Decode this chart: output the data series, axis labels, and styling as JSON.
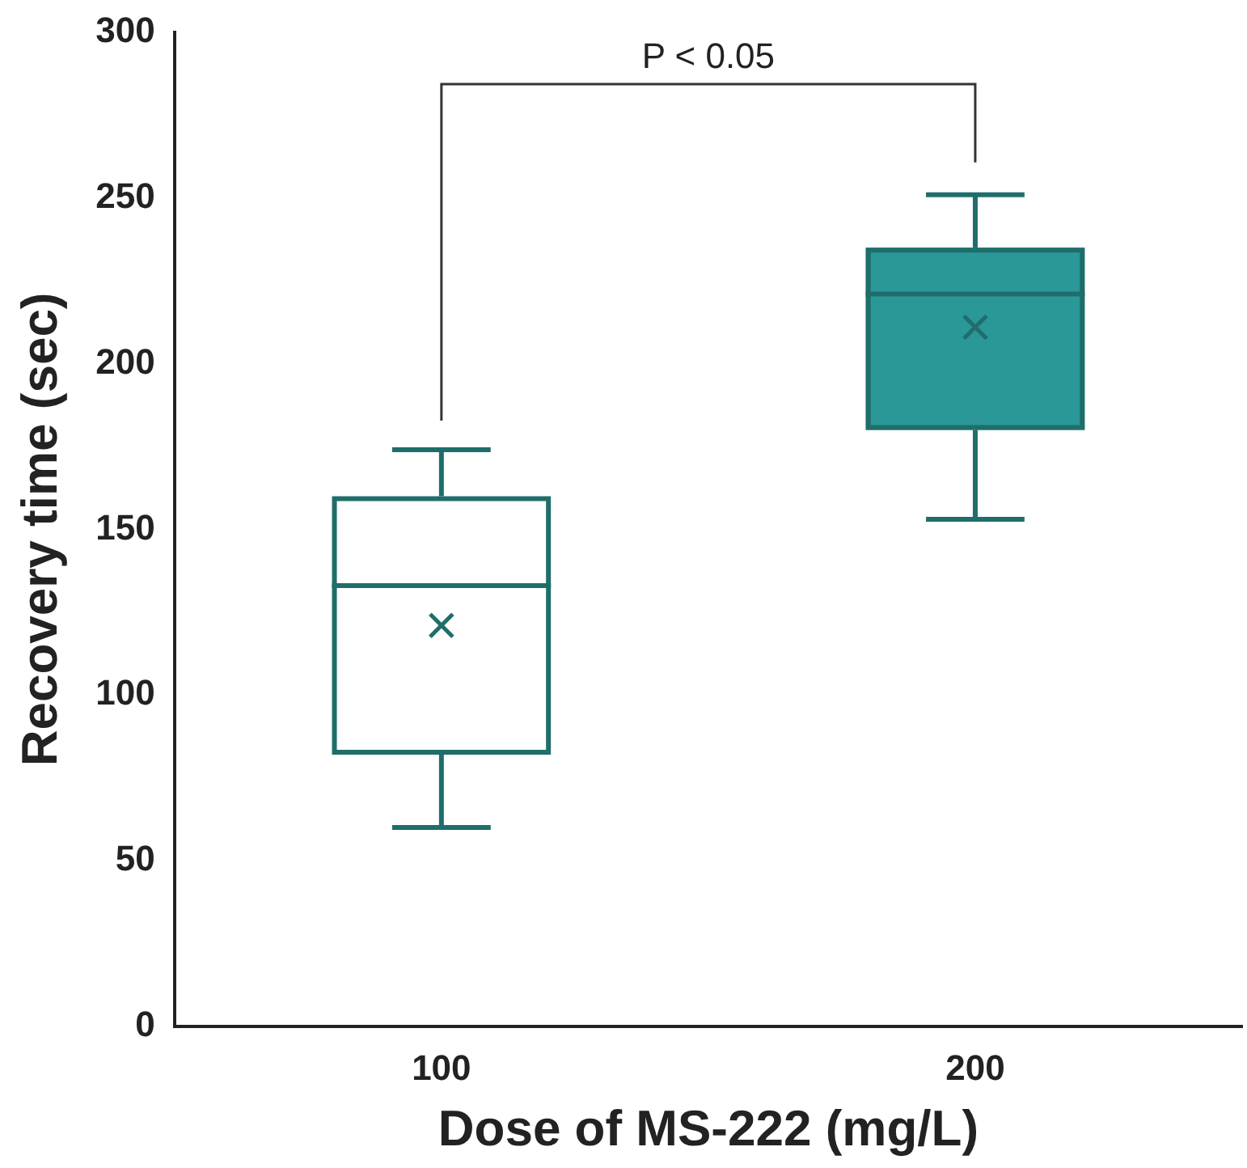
{
  "chart_data": {
    "type": "box",
    "xlabel": "Dose of MS-222 (mg/L)",
    "ylabel": "Recovery time (sec)",
    "categories": [
      "100",
      "200"
    ],
    "boxes": [
      {
        "low": 60,
        "q1": 82,
        "median": 133,
        "q3": 160,
        "high": 174,
        "mean": 121
      },
      {
        "low": 153,
        "q1": 180,
        "median": 221,
        "q3": 235,
        "high": 251,
        "mean": 211
      }
    ],
    "colors": [
      "#ffffff",
      "#2a9896"
    ],
    "color": "#1f6e6b",
    "marker": "cross",
    "ylim": [
      0,
      300
    ],
    "yticks": [
      0,
      50,
      100,
      150,
      200,
      250,
      300
    ],
    "grid": false,
    "legend": false,
    "annotations": [
      "P < 0.05"
    ]
  }
}
